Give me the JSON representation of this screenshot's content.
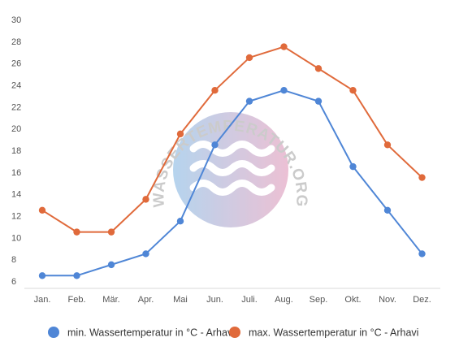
{
  "chart_data": {
    "type": "line",
    "categories": [
      "Jan.",
      "Feb.",
      "Mär.",
      "Apr.",
      "Mai",
      "Jun.",
      "Juli.",
      "Aug.",
      "Sep.",
      "Okt.",
      "Nov.",
      "Dez."
    ],
    "ylim": [
      6,
      30
    ],
    "yticks": [
      6,
      8,
      10,
      12,
      14,
      16,
      18,
      20,
      22,
      24,
      26,
      28,
      30
    ],
    "grid": {
      "horizontal": false,
      "vertical": false,
      "axis_line": "x"
    },
    "legend_position": "bottom",
    "series": [
      {
        "name": "min. Wassertemperatur in °C - Arhavi",
        "color": "#4f86d6",
        "values": [
          6.5,
          6.5,
          7.5,
          8.5,
          11.5,
          18.5,
          22.5,
          23.5,
          22.5,
          16.5,
          12.5,
          8.5
        ]
      },
      {
        "name": "max. Wassertemperatur in °C - Arhavi",
        "color": "#e06a3b",
        "values": [
          12.5,
          10.5,
          10.5,
          13.5,
          19.5,
          23.5,
          26.5,
          27.5,
          25.5,
          23.5,
          18.5,
          15.5
        ]
      }
    ]
  },
  "watermark": {
    "text": "WASSERTEMPERATUR.ORG",
    "colors": {
      "left": "#a9cdeb",
      "right": "#e9b6cd"
    }
  }
}
